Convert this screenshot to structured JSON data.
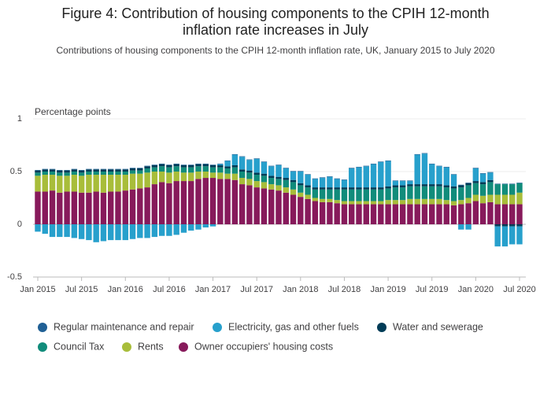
{
  "chart_data": {
    "type": "stacked_bar",
    "title": "Figure 4: Contribution of housing components to the CPIH 12-month inflation rate increases in July",
    "title_lines": [
      "Figure 4: Contribution of housing components to the CPIH 12-month",
      "inflation rate increases in July"
    ],
    "subtitle": "Contributions of housing components to the CPIH 12-month inflation rate, UK, January 2015 to July 2020",
    "y_label": "Percentage points",
    "categories": [
      "Jan 2015",
      null,
      null,
      null,
      null,
      null,
      "Jul 2015",
      null,
      null,
      null,
      null,
      null,
      "Jan 2016",
      null,
      null,
      null,
      null,
      null,
      "Jul 2016",
      null,
      null,
      null,
      null,
      null,
      "Jan 2017",
      null,
      null,
      null,
      null,
      null,
      "Jul 2017",
      null,
      null,
      null,
      null,
      null,
      "Jan 2018",
      null,
      null,
      null,
      null,
      null,
      "Jul 2018",
      null,
      null,
      null,
      null,
      null,
      "Jan 2019",
      null,
      null,
      null,
      null,
      null,
      "Jul 2019",
      null,
      null,
      null,
      null,
      null,
      "Jan 2020",
      null,
      null,
      null,
      null,
      null,
      "Jul 2020"
    ],
    "ylim": [
      -0.5,
      1
    ],
    "yticks": [
      {
        "value": -0.5,
        "label": "-0.5"
      },
      0,
      {
        "value": 0.5,
        "label": "0.5"
      },
      1
    ],
    "series": [
      {
        "name": "Regular maintenance and repair",
        "color": "#206095",
        "values": [
          0.005,
          0.005,
          0.005,
          0.005,
          0.005,
          0.005,
          0.005,
          0.005,
          0.005,
          0.005,
          0.005,
          0.005,
          0.005,
          0.005,
          0.005,
          0.005,
          0.005,
          0.005,
          0.005,
          0.005,
          0.005,
          0.005,
          0.005,
          0.005,
          0.005,
          0.005,
          0.005,
          0.005,
          0.005,
          0.005,
          0.005,
          0.005,
          0.005,
          0.005,
          0.005,
          0.005,
          0.005,
          0.005,
          0.005,
          0.005,
          0.005,
          0.005,
          0.005,
          0.005,
          0.005,
          0.005,
          0.005,
          0.005,
          0.005,
          0.005,
          0.005,
          0.005,
          0.005,
          0.005,
          0.005,
          0.005,
          0.005,
          0.005,
          0.005,
          0.005,
          0.005,
          0.005,
          0.005,
          0.005,
          0.005,
          0.005,
          0.005
        ]
      },
      {
        "name": "Electricity, gas and other fuels",
        "color": "#27a0cc",
        "values": [
          -0.07,
          -0.09,
          -0.12,
          -0.12,
          -0.12,
          -0.13,
          -0.14,
          -0.15,
          -0.17,
          -0.16,
          -0.15,
          -0.15,
          -0.15,
          -0.14,
          -0.13,
          -0.13,
          -0.12,
          -0.11,
          -0.11,
          -0.1,
          -0.08,
          -0.06,
          -0.05,
          -0.03,
          -0.02,
          0.01,
          0.05,
          0.1,
          0.12,
          0.1,
          0.13,
          0.11,
          0.09,
          0.11,
          0.09,
          0.08,
          0.11,
          0.1,
          0.08,
          0.09,
          0.1,
          0.08,
          0.07,
          0.18,
          0.19,
          0.2,
          0.22,
          0.24,
          0.24,
          0.04,
          0.04,
          0.03,
          0.28,
          0.29,
          0.19,
          0.17,
          0.17,
          0.11,
          -0.05,
          -0.05,
          0.12,
          0.08,
          0.07,
          -0.19,
          -0.19,
          -0.17,
          -0.17
        ]
      },
      {
        "name": "Water and sewerage",
        "color": "#003c57",
        "values": [
          0.02,
          0.02,
          0.02,
          0.02,
          0.02,
          0.02,
          0.02,
          0.02,
          0.02,
          0.02,
          0.02,
          0.02,
          0.02,
          0.02,
          0.02,
          0.02,
          0.02,
          0.02,
          0.02,
          0.02,
          0.02,
          0.02,
          0.02,
          0.02,
          0.02,
          0.02,
          0.02,
          0.02,
          0.02,
          0.02,
          0.02,
          0.02,
          0.02,
          0.02,
          0.02,
          0.02,
          0.02,
          0.02,
          0.02,
          0.02,
          0.02,
          0.02,
          0.02,
          0.02,
          0.02,
          0.02,
          0.02,
          0.02,
          0.02,
          0.02,
          0.02,
          0.02,
          0.02,
          0.02,
          0.02,
          0.02,
          0.02,
          0.02,
          0.02,
          0.02,
          0.02,
          0.02,
          0.02,
          -0.02,
          -0.02,
          -0.02,
          -0.02
        ]
      },
      {
        "name": "Council Tax",
        "color": "#118c7b",
        "values": [
          0.03,
          0.03,
          0.03,
          0.03,
          0.03,
          0.03,
          0.03,
          0.03,
          0.03,
          0.03,
          0.03,
          0.03,
          0.03,
          0.03,
          0.03,
          0.04,
          0.04,
          0.05,
          0.05,
          0.05,
          0.05,
          0.05,
          0.05,
          0.05,
          0.05,
          0.05,
          0.05,
          0.06,
          0.06,
          0.06,
          0.06,
          0.06,
          0.06,
          0.06,
          0.07,
          0.07,
          0.07,
          0.07,
          0.08,
          0.09,
          0.09,
          0.1,
          0.11,
          0.11,
          0.11,
          0.11,
          0.11,
          0.11,
          0.11,
          0.12,
          0.12,
          0.12,
          0.12,
          0.12,
          0.12,
          0.12,
          0.12,
          0.12,
          0.12,
          0.12,
          0.11,
          0.11,
          0.12,
          0.1,
          0.1,
          0.1,
          0.09
        ]
      },
      {
        "name": "Rents",
        "color": "#a8bd3a",
        "values": [
          0.15,
          0.16,
          0.15,
          0.16,
          0.15,
          0.16,
          0.16,
          0.17,
          0.16,
          0.17,
          0.16,
          0.16,
          0.15,
          0.15,
          0.14,
          0.14,
          0.12,
          0.1,
          0.1,
          0.09,
          0.08,
          0.08,
          0.07,
          0.06,
          0.05,
          0.06,
          0.05,
          0.06,
          0.06,
          0.06,
          0.06,
          0.06,
          0.05,
          0.05,
          0.05,
          0.05,
          0.04,
          0.04,
          0.03,
          0.03,
          0.03,
          0.03,
          0.03,
          0.03,
          0.03,
          0.03,
          0.03,
          0.03,
          0.04,
          0.04,
          0.04,
          0.05,
          0.05,
          0.05,
          0.05,
          0.05,
          0.04,
          0.04,
          0.04,
          0.05,
          0.06,
          0.07,
          0.07,
          0.09,
          0.09,
          0.09,
          0.11
        ]
      },
      {
        "name": "Owner occupiers' housing costs",
        "color": "#871a5b",
        "values": [
          0.31,
          0.31,
          0.32,
          0.3,
          0.31,
          0.31,
          0.3,
          0.3,
          0.31,
          0.3,
          0.31,
          0.31,
          0.32,
          0.33,
          0.34,
          0.35,
          0.38,
          0.4,
          0.39,
          0.41,
          0.41,
          0.41,
          0.43,
          0.44,
          0.44,
          0.43,
          0.43,
          0.42,
          0.38,
          0.37,
          0.35,
          0.34,
          0.33,
          0.32,
          0.3,
          0.28,
          0.26,
          0.24,
          0.22,
          0.21,
          0.21,
          0.2,
          0.19,
          0.19,
          0.19,
          0.19,
          0.19,
          0.19,
          0.19,
          0.19,
          0.19,
          0.19,
          0.19,
          0.19,
          0.19,
          0.19,
          0.19,
          0.18,
          0.19,
          0.2,
          0.22,
          0.2,
          0.21,
          0.19,
          0.19,
          0.19,
          0.19
        ]
      }
    ]
  }
}
